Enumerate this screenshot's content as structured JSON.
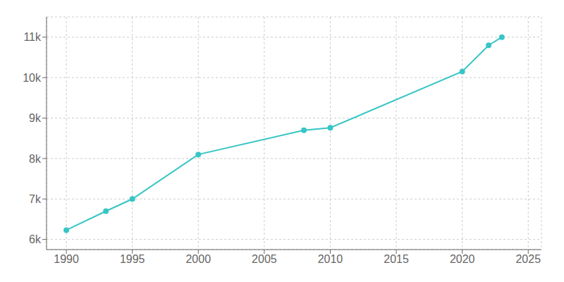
{
  "chart_data": {
    "type": "line",
    "x": [
      1990,
      1993,
      1995,
      2000,
      2008,
      2010,
      2020,
      2022,
      2023
    ],
    "values": [
      6230,
      6700,
      7000,
      8100,
      8700,
      8760,
      10150,
      10800,
      11000
    ],
    "color": "#38C5C5",
    "marker": "o",
    "xlim": [
      1988.5,
      2026
    ],
    "ylim": [
      5750,
      11500
    ],
    "xticks": [
      1990,
      1995,
      2000,
      2005,
      2010,
      2015,
      2020,
      2025
    ],
    "yticks": [
      {
        "value": 6000,
        "label": "6k"
      },
      {
        "value": 7000,
        "label": "7k"
      },
      {
        "value": 8000,
        "label": "8k"
      },
      {
        "value": 9000,
        "label": "9k"
      },
      {
        "value": 10000,
        "label": "10k"
      },
      {
        "value": 11000,
        "label": "11k"
      }
    ],
    "grid": true
  }
}
